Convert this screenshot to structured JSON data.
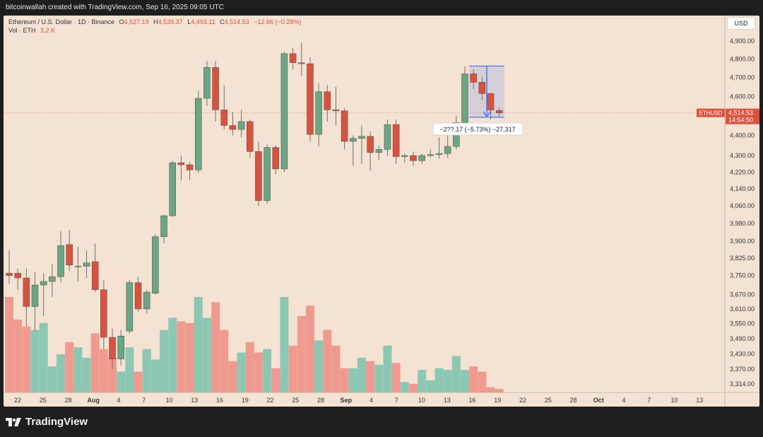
{
  "header": {
    "attribution": "bitcoinwallah created with TradingView.com, Sep 16, 2025 09:05 UTC"
  },
  "legend": {
    "symbol": "Ethereum / U.S. Dollar · 1D · Binance",
    "open_label": "O",
    "open": "4,527.19",
    "high_label": "H",
    "high": "4,539.37",
    "low_label": "L",
    "low": "4,493.11",
    "close_label": "C",
    "close": "4,514.53",
    "change": "−12.66 (−0.28%)",
    "vol_label": "Vol · ETH",
    "vol_value": "3.2 K"
  },
  "toolbar": {
    "currency": "USD"
  },
  "price_tag": {
    "symbol": "ETHUSD",
    "price": "4,514.53",
    "countdown": "14:54:50"
  },
  "measure": {
    "label": "−2??.17 (−5.73%) −27,317"
  },
  "footer": {
    "brand": "TradingView"
  },
  "colors": {
    "up": "#6ba583",
    "down": "#d9523f",
    "vol_up": "#8cc7b3",
    "vol_down": "#ef9a8f",
    "background": "#f4e2d2",
    "measure": "#2962ff"
  },
  "chart_data": {
    "type": "candlestick",
    "timeframe": "1D",
    "y_axis": {
      "scale": "log",
      "ticks": [
        "4,900.00",
        "4,800.00",
        "4,700.00",
        "4,600.00",
        "4,400.00",
        "4,300.00",
        "4,220.00",
        "4,140.00",
        "4,060.00",
        "3,980.00",
        "3,900.00",
        "3,825.00",
        "3,750.00",
        "3,670.00",
        "3,610.00",
        "3,550.00",
        "3,490.00",
        "3,430.00",
        "3,370.00",
        "3,314.00"
      ],
      "range": [
        3280,
        5000
      ]
    },
    "x_axis": {
      "ticks": [
        "22",
        "25",
        "28",
        "Aug",
        "4",
        "7",
        "10",
        "13",
        "16",
        "19",
        "22",
        "25",
        "28",
        "Sep",
        "4",
        "7",
        "10",
        "13",
        "16",
        "19",
        "22",
        "25",
        "28",
        "Oct",
        "4",
        "7",
        "10",
        "13"
      ]
    },
    "candles": [
      {
        "o": 3760,
        "h": 3860,
        "l": 3715,
        "c": 3750
      },
      {
        "o": 3760,
        "h": 3780,
        "l": 3690,
        "c": 3740
      },
      {
        "o": 3740,
        "h": 3780,
        "l": 3540,
        "c": 3620
      },
      {
        "o": 3620,
        "h": 3765,
        "l": 3520,
        "c": 3710
      },
      {
        "o": 3710,
        "h": 3760,
        "l": 3580,
        "c": 3725
      },
      {
        "o": 3725,
        "h": 3800,
        "l": 3660,
        "c": 3745
      },
      {
        "o": 3745,
        "h": 3945,
        "l": 3720,
        "c": 3880
      },
      {
        "o": 3885,
        "h": 3950,
        "l": 3770,
        "c": 3795
      },
      {
        "o": 3790,
        "h": 3875,
        "l": 3725,
        "c": 3790
      },
      {
        "o": 3790,
        "h": 3860,
        "l": 3740,
        "c": 3805
      },
      {
        "o": 3810,
        "h": 3890,
        "l": 3680,
        "c": 3690
      },
      {
        "o": 3690,
        "h": 3730,
        "l": 3450,
        "c": 3495
      },
      {
        "o": 3495,
        "h": 3530,
        "l": 3370,
        "c": 3410
      },
      {
        "o": 3410,
        "h": 3525,
        "l": 3385,
        "c": 3500
      },
      {
        "o": 3520,
        "h": 3730,
        "l": 3510,
        "c": 3720
      },
      {
        "o": 3720,
        "h": 3745,
        "l": 3600,
        "c": 3610
      },
      {
        "o": 3610,
        "h": 3690,
        "l": 3590,
        "c": 3680
      },
      {
        "o": 3675,
        "h": 3930,
        "l": 3670,
        "c": 3920
      },
      {
        "o": 3920,
        "h": 4020,
        "l": 3890,
        "c": 4015
      },
      {
        "o": 4015,
        "h": 4275,
        "l": 4010,
        "c": 4265
      },
      {
        "o": 4265,
        "h": 4300,
        "l": 4180,
        "c": 4255
      },
      {
        "o": 4255,
        "h": 4270,
        "l": 4180,
        "c": 4230
      },
      {
        "o": 4230,
        "h": 4630,
        "l": 4215,
        "c": 4590
      },
      {
        "o": 4590,
        "h": 4790,
        "l": 4550,
        "c": 4755
      },
      {
        "o": 4755,
        "h": 4790,
        "l": 4470,
        "c": 4530
      },
      {
        "o": 4530,
        "h": 4660,
        "l": 4430,
        "c": 4450
      },
      {
        "o": 4450,
        "h": 4520,
        "l": 4400,
        "c": 4430
      },
      {
        "o": 4430,
        "h": 4530,
        "l": 4390,
        "c": 4470
      },
      {
        "o": 4470,
        "h": 4480,
        "l": 4290,
        "c": 4320
      },
      {
        "o": 4320,
        "h": 4370,
        "l": 4060,
        "c": 4085
      },
      {
        "o": 4085,
        "h": 4355,
        "l": 4070,
        "c": 4340
      },
      {
        "o": 4340,
        "h": 4350,
        "l": 4210,
        "c": 4235
      },
      {
        "o": 4235,
        "h": 4840,
        "l": 4220,
        "c": 4830
      },
      {
        "o": 4830,
        "h": 4860,
        "l": 4745,
        "c": 4780
      },
      {
        "o": 4780,
        "h": 4890,
        "l": 4710,
        "c": 4775
      },
      {
        "o": 4775,
        "h": 4810,
        "l": 4370,
        "c": 4405
      },
      {
        "o": 4405,
        "h": 4670,
        "l": 4345,
        "c": 4625
      },
      {
        "o": 4625,
        "h": 4660,
        "l": 4470,
        "c": 4530
      },
      {
        "o": 4530,
        "h": 4650,
        "l": 4450,
        "c": 4525
      },
      {
        "o": 4525,
        "h": 4540,
        "l": 4330,
        "c": 4370
      },
      {
        "o": 4370,
        "h": 4400,
        "l": 4250,
        "c": 4385
      },
      {
        "o": 4385,
        "h": 4450,
        "l": 4260,
        "c": 4395
      },
      {
        "o": 4395,
        "h": 4420,
        "l": 4225,
        "c": 4315
      },
      {
        "o": 4315,
        "h": 4350,
        "l": 4280,
        "c": 4330
      },
      {
        "o": 4330,
        "h": 4480,
        "l": 4300,
        "c": 4455
      },
      {
        "o": 4455,
        "h": 4480,
        "l": 4260,
        "c": 4295
      },
      {
        "o": 4295,
        "h": 4310,
        "l": 4265,
        "c": 4300
      },
      {
        "o": 4300,
        "h": 4320,
        "l": 4250,
        "c": 4275
      },
      {
        "o": 4275,
        "h": 4310,
        "l": 4260,
        "c": 4300
      },
      {
        "o": 4300,
        "h": 4330,
        "l": 4290,
        "c": 4305
      },
      {
        "o": 4305,
        "h": 4390,
        "l": 4285,
        "c": 4310
      },
      {
        "o": 4310,
        "h": 4460,
        "l": 4290,
        "c": 4345
      },
      {
        "o": 4345,
        "h": 4500,
        "l": 4330,
        "c": 4465
      },
      {
        "o": 4465,
        "h": 4760,
        "l": 4455,
        "c": 4720
      },
      {
        "o": 4720,
        "h": 4745,
        "l": 4640,
        "c": 4675
      },
      {
        "o": 4675,
        "h": 4705,
        "l": 4580,
        "c": 4615
      },
      {
        "o": 4615,
        "h": 4620,
        "l": 4480,
        "c": 4530
      },
      {
        "o": 4527.19,
        "h": 4539.37,
        "l": 4493.11,
        "c": 4514.53
      }
    ],
    "volume": [
      0.55,
      0.42,
      0.38,
      0.36,
      0.4,
      0.15,
      0.22,
      0.29,
      0.26,
      0.2,
      0.34,
      0.25,
      0.2,
      0.12,
      0.26,
      0.12,
      0.25,
      0.19,
      0.36,
      0.43,
      0.41,
      0.4,
      0.55,
      0.43,
      0.52,
      0.36,
      0.18,
      0.23,
      0.29,
      0.23,
      0.25,
      0.14,
      0.55,
      0.27,
      0.44,
      0.5,
      0.3,
      0.36,
      0.27,
      0.14,
      0.14,
      0.2,
      0.18,
      0.16,
      0.27,
      0.17,
      0.06,
      0.05,
      0.13,
      0.07,
      0.14,
      0.13,
      0.21,
      0.13,
      0.15,
      0.12,
      0.03,
      0.02
    ]
  }
}
